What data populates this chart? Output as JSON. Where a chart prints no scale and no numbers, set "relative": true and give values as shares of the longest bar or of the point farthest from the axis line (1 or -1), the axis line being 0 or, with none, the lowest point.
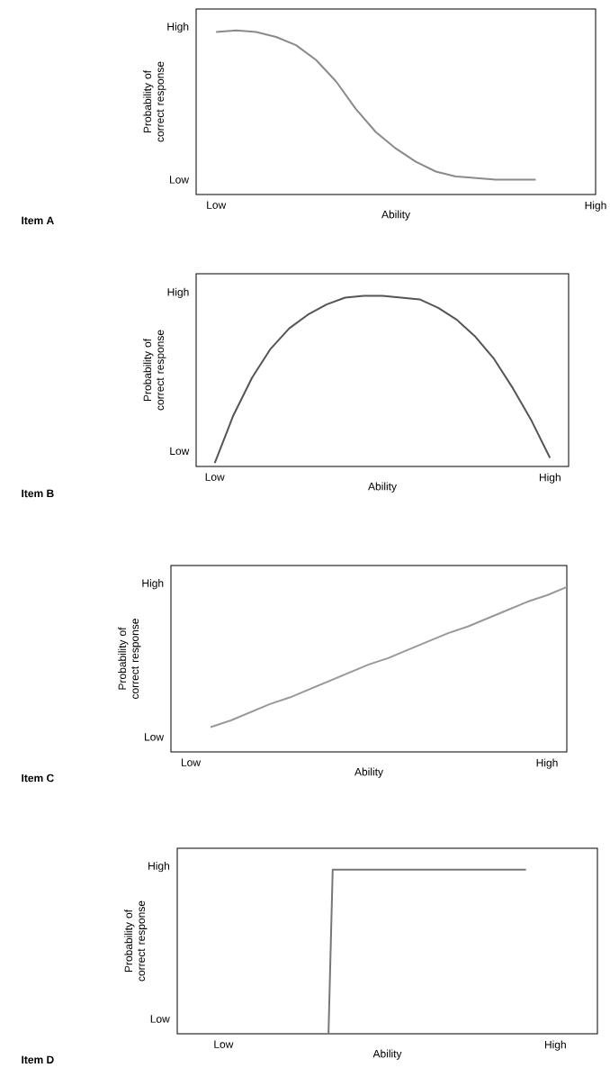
{
  "chart_data": [
    {
      "type": "line",
      "relative": true,
      "xlabel": "Ability",
      "ylabel": "Probability of correct response",
      "annotations": [
        "Item A",
        "High",
        "Low"
      ],
      "categories": [
        null,
        "Low",
        null,
        null,
        null,
        null,
        null,
        null,
        null,
        null,
        null,
        null,
        null,
        null,
        null,
        null,
        null,
        null,
        null,
        null,
        "High"
      ],
      "series": [
        {
          "color": "#8a8a8a",
          "values": [
            null,
            0.99,
            1,
            0.99,
            0.96,
            0.91,
            0.82,
            0.69,
            0.52,
            0.38,
            0.28,
            0.2,
            0.14,
            0.11,
            0.1,
            0.09,
            0.09,
            0.09,
            null,
            null,
            null
          ]
        }
      ]
    },
    {
      "type": "line",
      "relative": true,
      "xlabel": "Ability",
      "ylabel": "Probability of correct response",
      "annotations": [
        "Item B",
        "High",
        "Low"
      ],
      "categories": [
        null,
        "Low",
        null,
        null,
        null,
        null,
        null,
        null,
        null,
        null,
        null,
        null,
        null,
        null,
        null,
        null,
        null,
        null,
        null,
        "High",
        null
      ],
      "series": [
        {
          "color": "#555555",
          "values": [
            null,
            0.02,
            0.3,
            0.52,
            0.69,
            0.81,
            0.89,
            0.95,
            0.99,
            1,
            1,
            0.99,
            0.98,
            0.93,
            0.86,
            0.76,
            0.63,
            0.46,
            0.27,
            0.05,
            null
          ]
        }
      ]
    },
    {
      "type": "line",
      "relative": true,
      "xlabel": "Ability",
      "ylabel": "Probability of correct response",
      "annotations": [
        "Item C",
        "High",
        "Low"
      ],
      "categories": [
        null,
        "Low",
        null,
        null,
        null,
        null,
        null,
        null,
        null,
        null,
        null,
        null,
        null,
        null,
        null,
        null,
        null,
        null,
        null,
        "High",
        null
      ],
      "series": [
        {
          "color": "#999999",
          "values": [
            null,
            null,
            0.15,
            0.19,
            0.24,
            0.29,
            0.33,
            0.38,
            0.43,
            0.48,
            0.53,
            0.57,
            0.62,
            0.67,
            0.72,
            0.76,
            0.81,
            0.86,
            0.91,
            0.95,
            1
          ]
        }
      ]
    },
    {
      "type": "line",
      "relative": true,
      "xlabel": "Ability",
      "ylabel": "Probability of correct response",
      "annotations": [
        "Item D",
        "High",
        "Low"
      ],
      "categories": [
        null,
        null,
        null,
        null,
        null,
        null,
        null,
        null,
        null,
        null,
        null,
        "Low",
        null,
        null,
        null,
        null,
        null,
        null,
        null,
        null,
        null,
        null,
        null,
        null,
        null,
        null,
        null,
        null,
        null,
        null,
        null,
        null,
        null,
        null,
        null,
        null,
        null,
        null,
        null,
        null,
        null,
        null,
        null,
        null,
        null,
        null,
        null,
        null,
        null,
        null,
        null,
        null,
        null,
        null,
        null,
        null,
        null,
        null,
        null,
        null,
        null,
        null,
        null,
        null,
        null,
        null,
        null,
        null,
        null,
        null,
        null,
        null,
        null,
        null,
        null,
        null,
        null,
        null,
        null,
        null,
        null,
        null,
        null,
        null,
        null,
        null,
        null,
        null,
        null,
        null,
        "High",
        null,
        null,
        null,
        null,
        null,
        null,
        null,
        null,
        null,
        null
      ],
      "series": [
        {
          "color": "#777777",
          "values": [
            null,
            null,
            null,
            null,
            null,
            null,
            null,
            null,
            null,
            null,
            null,
            null,
            null,
            null,
            null,
            null,
            null,
            null,
            null,
            null,
            null,
            null,
            null,
            null,
            null,
            null,
            null,
            null,
            null,
            null,
            null,
            null,
            null,
            null,
            null,
            null,
            0,
            1,
            1,
            1,
            1,
            1,
            1,
            1,
            1,
            1,
            1,
            1,
            1,
            1,
            1,
            1,
            1,
            1,
            1,
            1,
            1,
            1,
            1,
            1,
            1,
            1,
            1,
            1,
            1,
            1,
            1,
            1,
            1,
            1,
            1,
            1,
            1,
            1,
            1,
            1,
            1,
            1,
            1,
            1,
            1,
            1,
            1,
            1,
            null,
            null,
            null,
            null,
            null,
            null,
            null,
            null,
            null,
            null,
            null,
            null,
            null,
            null,
            null,
            null,
            null
          ]
        }
      ]
    }
  ]
}
